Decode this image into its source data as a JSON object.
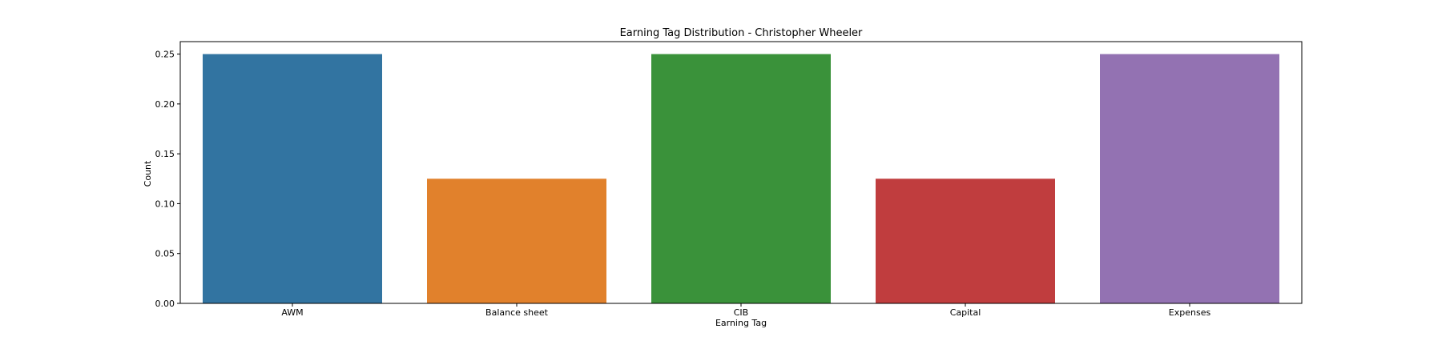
{
  "chart_data": {
    "type": "bar",
    "title": "Earning Tag Distribution - Christopher Wheeler",
    "xlabel": "Earning Tag",
    "ylabel": "Count",
    "categories": [
      "AWM",
      "Balance sheet",
      "CIB",
      "Capital",
      "Expenses"
    ],
    "values": [
      0.25,
      0.125,
      0.25,
      0.125,
      0.25
    ],
    "colors": [
      "#3274a1",
      "#e1812c",
      "#3a923a",
      "#c03d3e",
      "#9372b2"
    ],
    "ylim": [
      0,
      0.2625
    ],
    "yticks": [
      "0.00",
      "0.05",
      "0.10",
      "0.15",
      "0.20",
      "0.25"
    ],
    "grid": false,
    "legend": "none"
  }
}
